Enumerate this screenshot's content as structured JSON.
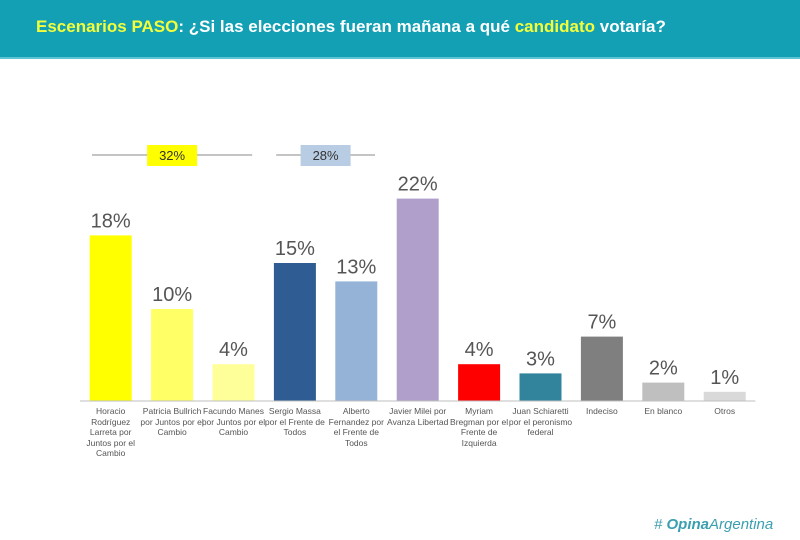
{
  "header": {
    "title_part1": "Escenarios PASO",
    "title_part2": ": ¿Si las elecciones fueran mañana a qué ",
    "title_part3": "candidato",
    "title_part4": " votaría?"
  },
  "chart_data": {
    "type": "bar",
    "title": "Escenarios PASO: ¿Si las elecciones fueran mañana a qué candidato votaría?",
    "categories": [
      "Horacio Rodríguez Larreta por Juntos por el Cambio",
      "Patricia Bullrich por Juntos por el Cambio",
      "Facundo Manes por Juntos por el Cambio",
      "Sergio Massa por el Frente de Todos",
      "Alberto Fernandez por el Frente de Todos",
      "Javier Milei por Avanza Libertad",
      "Myriam Bregman por el Frente de Izquierda",
      "Juan Schiaretti por el peronismo federal",
      "Indeciso",
      "En blanco",
      "Otros"
    ],
    "values": [
      18,
      10,
      4,
      15,
      13,
      22,
      4,
      3,
      7,
      2,
      1
    ],
    "value_labels": [
      "18%",
      "10%",
      "4%",
      "15%",
      "13%",
      "22%",
      "4%",
      "3%",
      "7%",
      "2%",
      "1%"
    ],
    "colors": [
      "#ffff00",
      "#ffff66",
      "#ffff99",
      "#2f5d93",
      "#95b3d7",
      "#b09fca",
      "#ff0000",
      "#31849b",
      "#7f7f7f",
      "#bfbfbf",
      "#d9d9d9"
    ],
    "ylim": [
      0,
      25
    ],
    "groups": [
      {
        "label": "32%",
        "color": "#ffff00",
        "from": 0,
        "to": 2
      },
      {
        "label": "28%",
        "color": "#b8cce4",
        "from": 3,
        "to": 4
      }
    ]
  },
  "logo": {
    "part1": "Opina",
    "part2": "Argentina"
  }
}
